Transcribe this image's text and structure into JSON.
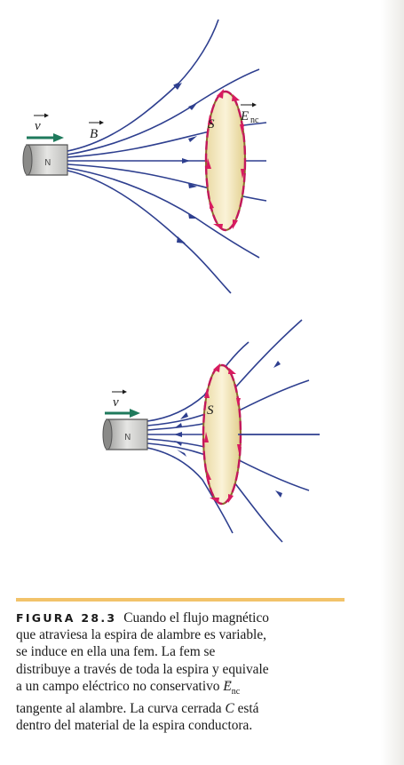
{
  "figure": {
    "label": "FIGURA 28.3",
    "caption_lines": [
      "Cuando el flujo magnético",
      "que atraviesa la espira de alambre es variable,",
      "se induce en ella una fem. La fem se",
      "distribuye a través de toda la espira y equivale",
      "a un campo eléctrico no conservativo",
      "tangente al alambre. La curva cerrada",
      "dentro del material de la espira conductora."
    ],
    "e_symbol": "E",
    "e_subscript": "nc",
    "curve_symbol": "C",
    "caption_tail_1": "está"
  },
  "diagram_top": {
    "velocity_label": "v",
    "field_label": "B",
    "surface_label": "S",
    "efield_label": "E",
    "efield_sub": "nc"
  },
  "diagram_bottom": {
    "velocity_label": "v",
    "surface_label": "S"
  },
  "colors": {
    "field_line": "#2e3f8f",
    "loop_ring": "#c2185b",
    "loop_fill": "#f4e7bd",
    "velocity_arrow": "#1f7a5c",
    "caption_rule": "#f2c36a"
  }
}
